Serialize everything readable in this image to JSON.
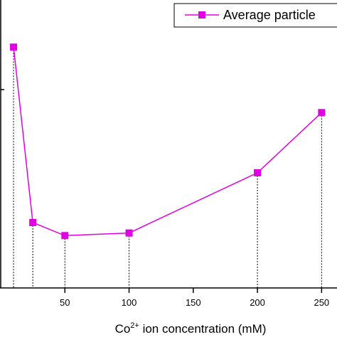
{
  "chart_data": {
    "type": "line",
    "x": [
      10,
      25,
      50,
      100,
      200,
      250
    ],
    "series": [
      {
        "name": "Average particle",
        "values": [
          92,
          25,
          20,
          21,
          44,
          67
        ]
      }
    ],
    "xlim": [
      0,
      262
    ],
    "ylim": [
      0,
      110
    ],
    "xticks": [
      50,
      100,
      150,
      200,
      250
    ],
    "xlabel_base": "Co",
    "xlabel_sup": "2+",
    "xlabel_rest": " ion concentration (mM)",
    "ylabel": "",
    "grid": false,
    "legend_position": "top-right",
    "series_color": "#e100e1",
    "drop_lines": "dotted vertical lines from each point to the x-axis"
  }
}
